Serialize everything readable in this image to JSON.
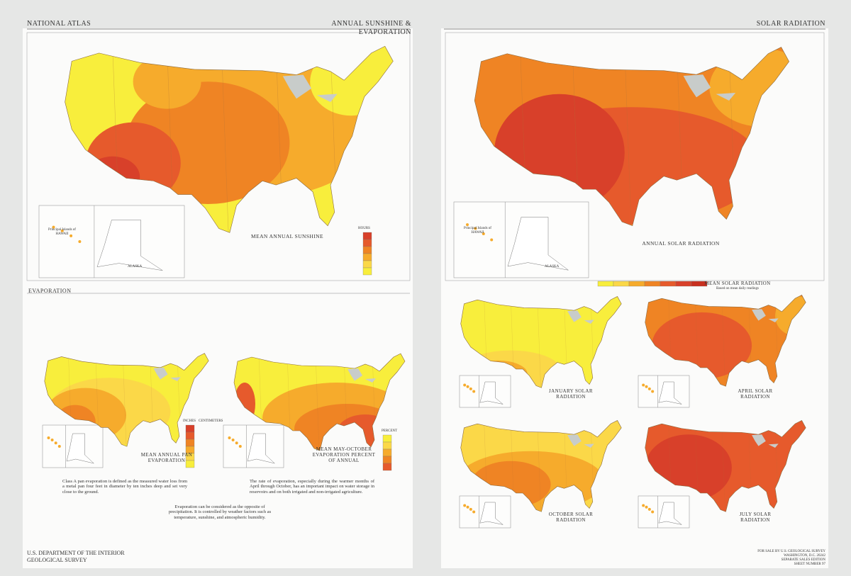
{
  "header": {
    "left": "NATIONAL ATLAS",
    "center": "ANNUAL SUNSHINE & EVAPORATION",
    "right": "SOLAR RADIATION"
  },
  "sunshine": {
    "title": "MEAN ANNUAL SUNSHINE",
    "legend_title": "HOURS",
    "alaska": "ALASKA",
    "hawaii": "Principal Islands of HAWAII"
  },
  "evaporation": {
    "heading": "EVAPORATION",
    "pan_title": "MEAN ANNUAL PAN EVAPORATION",
    "pan_legend": [
      "INCHES",
      "CENTIMETERS"
    ],
    "season_title": "MEAN MAY-OCTOBER EVAPORATION PERCENT OF ANNUAL",
    "season_legend": "PERCENT",
    "text": [
      "Class A pan evaporation is defined as the measured water loss from a metal pan four feet in diameter by ten inches deep and set very close to the ground.",
      "The rate of evaporation, especially during the warmer months of April through October, has an important impact on water storage in reservoirs and on both irrigated and non-irrigated agriculture.",
      "Evaporation can be considered as the opposite of precipitation. It is controlled by weather factors such as temperature, sunshine, and atmospheric humidity."
    ]
  },
  "solar": {
    "title": "ANNUAL SOLAR RADIATION",
    "alaska": "ALASKA",
    "hawaii": "Principal Islands of HAWAII",
    "legend_title": "MEAN SOLAR RADIATION",
    "legend_note": "Based on mean daily readings",
    "months": [
      "JANUARY SOLAR RADIATION",
      "APRIL SOLAR RADIATION",
      "OCTOBER SOLAR RADIATION",
      "JULY SOLAR RADIATION"
    ]
  },
  "footer": {
    "agency": [
      "U.S. DEPARTMENT OF THE INTERIOR",
      "GEOLOGICAL SURVEY"
    ],
    "sale": [
      "FOR SALE BY U.S. GEOLOGICAL SURVEY",
      "WASHINGTON, D.C. 20242",
      "SEPARATE SALES EDITION",
      "SHEET NUMBER 97"
    ]
  }
}
